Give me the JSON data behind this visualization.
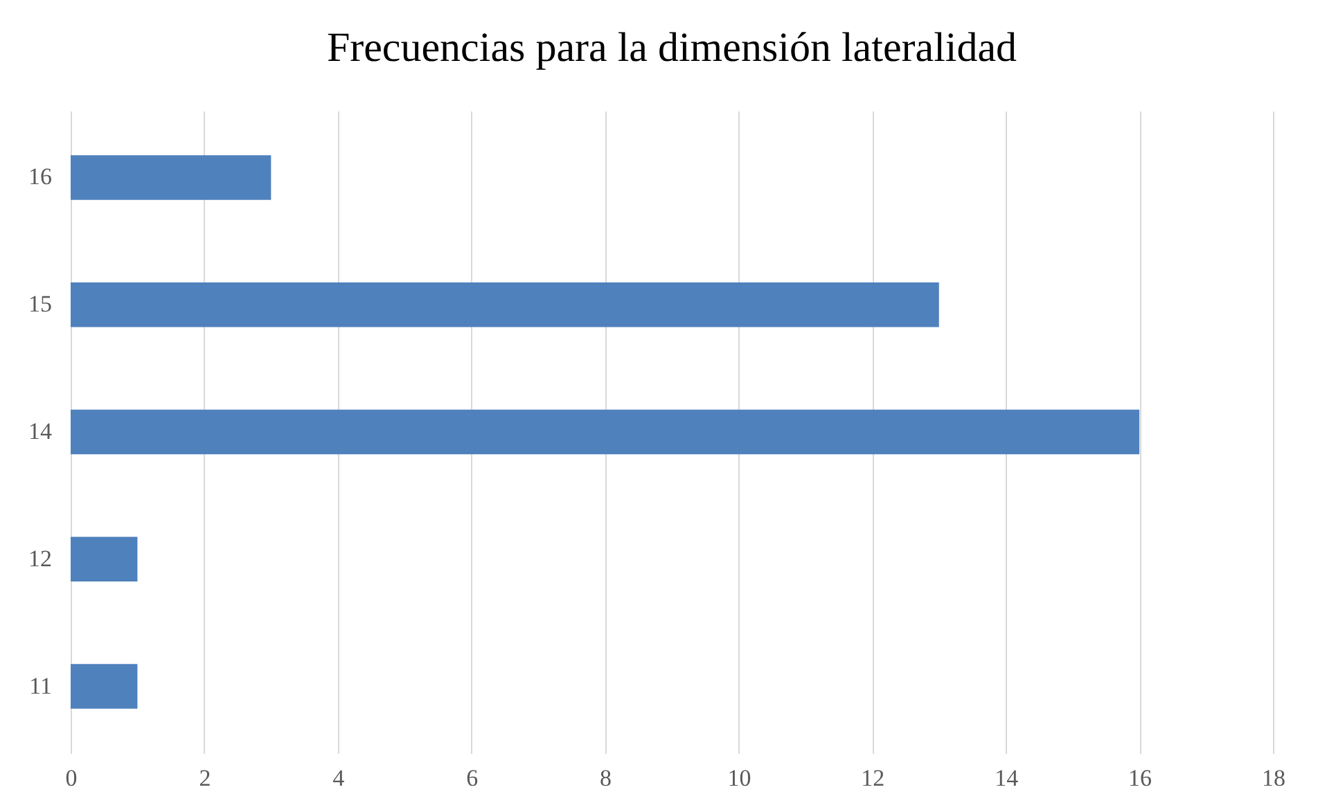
{
  "chart_data": {
    "type": "bar",
    "orientation": "horizontal",
    "title": "Frecuencias para la dimensión lateralidad",
    "categories": [
      "16",
      "15",
      "14",
      "12",
      "11"
    ],
    "series": [
      {
        "color": "#4f81bd",
        "values": [
          3,
          13,
          16,
          1,
          1
        ]
      }
    ],
    "xlim": [
      0,
      18
    ],
    "xticks": [
      0,
      2,
      4,
      6,
      8,
      10,
      12,
      14,
      16,
      18
    ],
    "grid": "x"
  }
}
